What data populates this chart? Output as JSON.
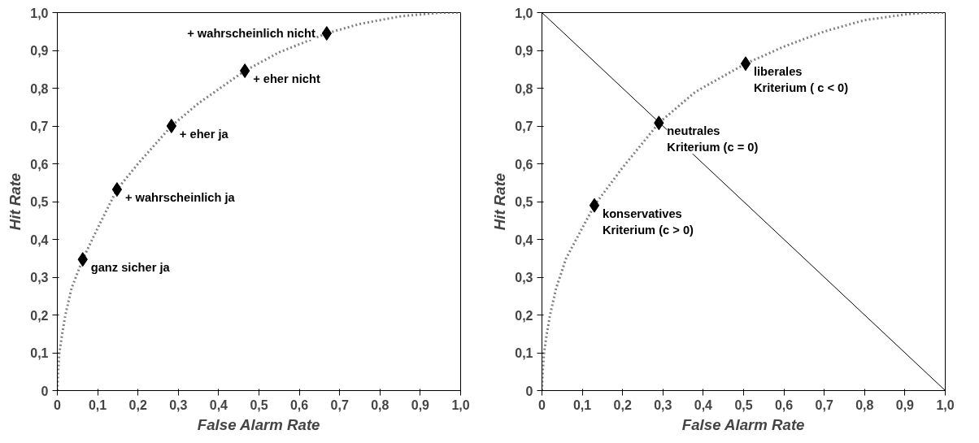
{
  "chart_data": [
    {
      "type": "scatter",
      "xlabel": "False Alarm Rate",
      "ylabel": "Hit Rate",
      "xlim": [
        0,
        1
      ],
      "ylim": [
        0,
        1
      ],
      "xticks": [
        0,
        {
          "value": 0.1,
          "label": "0,1"
        },
        {
          "value": 0.2,
          "label": "0,2"
        },
        {
          "value": 0.3,
          "label": "0,3"
        },
        {
          "value": 0.4,
          "label": "0,4"
        },
        {
          "value": 0.5,
          "label": "0,5"
        },
        {
          "value": 0.6,
          "label": "0,6"
        },
        {
          "value": 0.7,
          "label": "0,7"
        },
        {
          "value": 0.8,
          "label": "0,8"
        },
        {
          "value": 0.9,
          "label": "0,9"
        },
        {
          "value": 1,
          "label": "1,0"
        }
      ],
      "yticks": [
        0,
        {
          "value": 0.1,
          "label": "0,1"
        },
        {
          "value": 0.2,
          "label": "0,2"
        },
        {
          "value": 0.3,
          "label": "0,3"
        },
        {
          "value": 0.4,
          "label": "0,4"
        },
        {
          "value": 0.5,
          "label": "0,5"
        },
        {
          "value": 0.6,
          "label": "0,6"
        },
        {
          "value": 0.7,
          "label": "0,7"
        },
        {
          "value": 0.8,
          "label": "0,8"
        },
        {
          "value": 0.9,
          "label": "0,9"
        },
        {
          "value": 1,
          "label": "1,0"
        }
      ],
      "grid": false,
      "series": [
        {
          "type": "line",
          "line_style": "dotted",
          "color": "#808080",
          "x": [
            0,
            0.002,
            0.005,
            0.012,
            0.02,
            0.035,
            0.063,
            0.1,
            0.148,
            0.2,
            0.283,
            0.35,
            0.465,
            0.55,
            0.668,
            0.75,
            0.85,
            0.95,
            1
          ],
          "values": [
            0,
            0.05,
            0.1,
            0.15,
            0.2,
            0.27,
            0.347,
            0.43,
            0.532,
            0.6,
            0.7,
            0.76,
            0.846,
            0.895,
            0.945,
            0.97,
            0.99,
            1,
            1
          ]
        },
        {
          "marker": "diamond",
          "color": "#000000",
          "x": [
            0.063,
            0.148,
            0.283,
            0.465,
            0.668
          ],
          "values": [
            0.347,
            0.532,
            0.7,
            0.846,
            0.945
          ]
        }
      ],
      "annotations": [
        {
          "text": "ganz sicher ja",
          "x": 0.063,
          "y": 0.347
        },
        {
          "text": "+ wahrscheinlich  ja",
          "x": 0.148,
          "y": 0.532
        },
        {
          "text": "+ eher ja",
          "x": 0.283,
          "y": 0.7
        },
        {
          "text": "+ eher nicht",
          "x": 0.465,
          "y": 0.846
        },
        {
          "text": "+ wahrscheinlich nicht",
          "x": 0.668,
          "y": 0.945
        }
      ]
    },
    {
      "type": "scatter",
      "xlabel": "False Alarm Rate",
      "ylabel": "Hit Rate",
      "xlim": [
        0,
        1
      ],
      "ylim": [
        0,
        1
      ],
      "xticks": [
        0,
        {
          "value": 0.1,
          "label": "0,1"
        },
        {
          "value": 0.2,
          "label": "0,2"
        },
        {
          "value": 0.3,
          "label": "0,3"
        },
        {
          "value": 0.4,
          "label": "0,4"
        },
        {
          "value": 0.5,
          "label": "0,5"
        },
        {
          "value": 0.6,
          "label": "0,6"
        },
        {
          "value": 0.7,
          "label": "0,7"
        },
        {
          "value": 0.8,
          "label": "0,8"
        },
        {
          "value": 0.9,
          "label": "0,9"
        },
        {
          "value": 1,
          "label": "1,0"
        }
      ],
      "yticks": [
        0,
        {
          "value": 0.1,
          "label": "0,1"
        },
        {
          "value": 0.2,
          "label": "0,2"
        },
        {
          "value": 0.3,
          "label": "0,3"
        },
        {
          "value": 0.4,
          "label": "0,4"
        },
        {
          "value": 0.5,
          "label": "0,5"
        },
        {
          "value": 0.6,
          "label": "0,6"
        },
        {
          "value": 0.7,
          "label": "0,7"
        },
        {
          "value": 0.8,
          "label": "0,8"
        },
        {
          "value": 0.9,
          "label": "0,9"
        },
        {
          "value": 1,
          "label": "1,0"
        }
      ],
      "grid": false,
      "series": [
        {
          "type": "line",
          "line_style": "solid",
          "color": "#000000",
          "x": [
            0,
            1
          ],
          "values": [
            1,
            0
          ]
        },
        {
          "type": "line",
          "line_style": "dotted",
          "color": "#808080",
          "x": [
            0,
            0.002,
            0.005,
            0.012,
            0.02,
            0.035,
            0.06,
            0.1,
            0.13,
            0.2,
            0.29,
            0.38,
            0.505,
            0.6,
            0.7,
            0.8,
            0.9,
            0.95,
            1
          ],
          "values": [
            0,
            0.05,
            0.1,
            0.15,
            0.2,
            0.27,
            0.35,
            0.43,
            0.49,
            0.59,
            0.708,
            0.79,
            0.865,
            0.91,
            0.95,
            0.98,
            0.995,
            1,
            1
          ]
        },
        {
          "marker": "diamond",
          "color": "#000000",
          "x": [
            0.13,
            0.29,
            0.505
          ],
          "values": [
            0.49,
            0.708,
            0.865
          ]
        }
      ],
      "annotations": [
        {
          "text": "konservatives\nKriterium (c > 0)",
          "x": 0.13,
          "y": 0.49
        },
        {
          "text": "neutrales\nKriterium (c = 0)",
          "x": 0.29,
          "y": 0.708
        },
        {
          "text": "liberales\nKriterium ( c < 0)",
          "x": 0.505,
          "y": 0.865
        }
      ]
    }
  ]
}
